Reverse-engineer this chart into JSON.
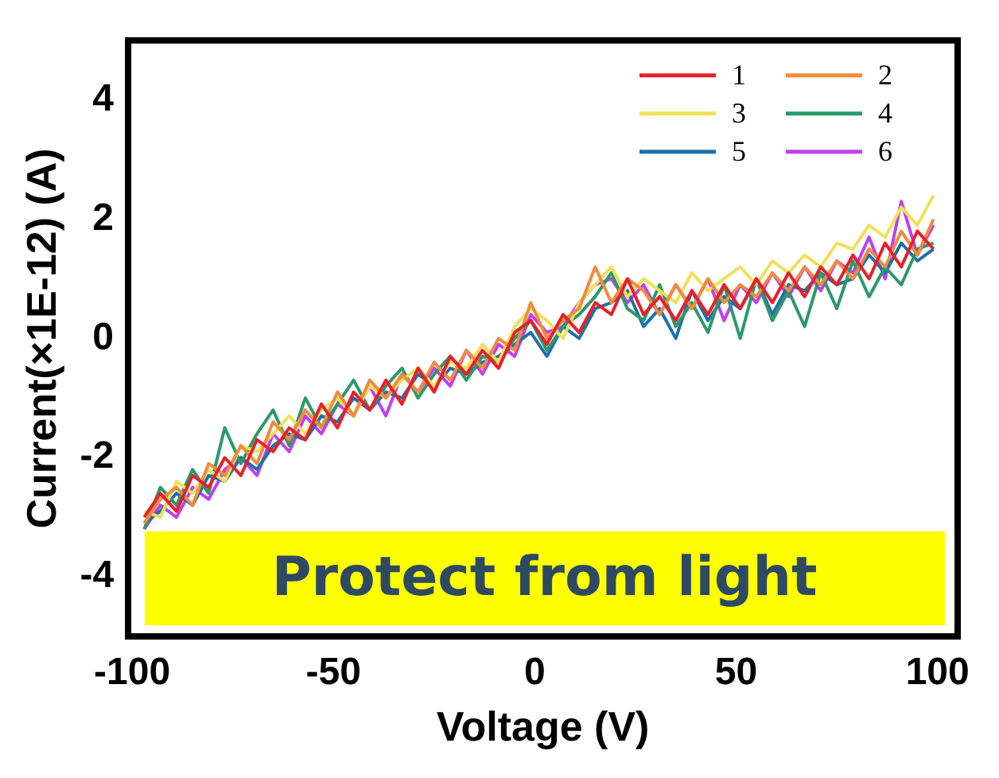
{
  "chart_data": {
    "type": "line",
    "xlabel": "Voltage (V)",
    "ylabel": "Current(×1E-12) (A)",
    "x": [
      -97,
      -93,
      -89,
      -85,
      -81,
      -77,
      -73,
      -69,
      -65,
      -61,
      -57,
      -53,
      -49,
      -45,
      -41,
      -37,
      -33,
      -29,
      -25,
      -21,
      -17,
      -13,
      -9,
      -5,
      -1,
      3,
      7,
      11,
      15,
      19,
      23,
      27,
      31,
      35,
      39,
      43,
      47,
      51,
      55,
      59,
      63,
      67,
      71,
      75,
      79,
      83,
      87,
      91,
      95,
      99
    ],
    "xlim": [
      -101,
      105
    ],
    "xticks": [
      -100,
      -50,
      0,
      50,
      100
    ],
    "ylim": [
      -5,
      5
    ],
    "yticks": [
      -4,
      -2,
      0,
      2,
      4
    ],
    "legend": "top right",
    "annotations": [
      "Protect from light"
    ],
    "series": [
      {
        "name": "1",
        "color": "#e8202a",
        "values": [
          -3.0,
          -2.6,
          -2.9,
          -2.3,
          -2.5,
          -2.0,
          -2.3,
          -1.7,
          -1.9,
          -1.5,
          -1.7,
          -1.1,
          -1.5,
          -0.9,
          -1.2,
          -0.7,
          -1.1,
          -0.5,
          -0.9,
          -0.3,
          -0.6,
          -0.2,
          -0.5,
          0.1,
          0.3,
          -0.1,
          0.4,
          0.1,
          0.6,
          0.4,
          1.0,
          0.4,
          0.7,
          0.3,
          0.8,
          0.4,
          0.9,
          0.5,
          1.0,
          0.6,
          1.1,
          0.7,
          1.2,
          0.9,
          1.4,
          1.0,
          1.6,
          1.2,
          1.8,
          1.5
        ]
      },
      {
        "name": "2",
        "color": "#f08c3c",
        "values": [
          -3.1,
          -2.7,
          -2.5,
          -2.8,
          -2.1,
          -2.3,
          -1.8,
          -2.1,
          -1.4,
          -1.7,
          -1.2,
          -1.5,
          -0.9,
          -1.3,
          -0.7,
          -1.0,
          -0.6,
          -0.9,
          -0.4,
          -0.7,
          -0.2,
          -0.5,
          0.0,
          -0.2,
          0.6,
          0.0,
          0.3,
          0.5,
          1.2,
          0.6,
          1.0,
          0.8,
          0.4,
          0.9,
          0.5,
          1.0,
          0.6,
          0.9,
          0.7,
          1.1,
          0.8,
          1.2,
          0.9,
          1.3,
          1.0,
          1.5,
          1.2,
          1.8,
          1.4,
          2.0
        ]
      },
      {
        "name": "3",
        "color": "#f0e05a",
        "values": [
          -2.9,
          -3.0,
          -2.4,
          -2.6,
          -2.2,
          -2.4,
          -1.8,
          -1.9,
          -1.6,
          -1.3,
          -1.6,
          -1.2,
          -1.0,
          -1.3,
          -0.8,
          -1.0,
          -0.7,
          -0.5,
          -0.8,
          -0.4,
          -0.5,
          -0.1,
          -0.4,
          0.2,
          0.5,
          0.3,
          0.0,
          0.6,
          0.9,
          1.2,
          0.7,
          1.0,
          0.8,
          0.6,
          1.1,
          0.8,
          1.0,
          1.2,
          0.9,
          1.3,
          1.1,
          1.4,
          1.2,
          1.6,
          1.5,
          1.9,
          1.7,
          2.2,
          1.9,
          2.4
        ]
      },
      {
        "name": "4",
        "color": "#2a9a6a",
        "values": [
          -3.2,
          -2.5,
          -2.8,
          -2.2,
          -2.6,
          -1.5,
          -2.1,
          -1.6,
          -1.2,
          -1.8,
          -1.0,
          -1.5,
          -1.1,
          -0.7,
          -1.2,
          -0.8,
          -0.5,
          -1.0,
          -0.6,
          -0.3,
          -0.7,
          -0.3,
          -0.4,
          0.0,
          0.3,
          -0.2,
          0.2,
          0.4,
          0.7,
          1.1,
          0.5,
          0.3,
          0.9,
          0.2,
          0.6,
          0.1,
          0.9,
          0.0,
          1.0,
          0.3,
          0.8,
          0.2,
          1.1,
          0.5,
          1.3,
          0.7,
          1.2,
          0.9,
          1.5,
          1.6
        ]
      },
      {
        "name": "5",
        "color": "#1f6fae",
        "values": [
          -3.1,
          -2.9,
          -2.6,
          -2.8,
          -2.3,
          -2.4,
          -2.0,
          -2.2,
          -1.8,
          -1.6,
          -1.7,
          -1.3,
          -1.4,
          -1.0,
          -1.2,
          -0.9,
          -1.0,
          -0.6,
          -0.8,
          -0.5,
          -0.6,
          -0.4,
          -0.3,
          -0.1,
          0.1,
          -0.3,
          0.2,
          0.0,
          0.5,
          0.6,
          0.8,
          0.2,
          0.5,
          0.0,
          0.8,
          0.3,
          0.7,
          0.5,
          1.0,
          0.4,
          0.9,
          0.8,
          1.1,
          0.9,
          1.0,
          1.4,
          1.1,
          1.6,
          1.3,
          1.5
        ]
      },
      {
        "name": "6",
        "color": "#c040f0",
        "values": [
          -3.2,
          -2.8,
          -3.0,
          -2.5,
          -2.7,
          -2.2,
          -2.0,
          -2.3,
          -1.6,
          -1.9,
          -1.3,
          -1.6,
          -1.1,
          -1.3,
          -0.8,
          -1.3,
          -0.6,
          -0.9,
          -0.5,
          -0.8,
          -0.2,
          -0.6,
          -0.1,
          -0.3,
          0.4,
          0.1,
          0.2,
          0.6,
          0.9,
          1.0,
          0.6,
          0.9,
          0.4,
          0.9,
          0.5,
          1.0,
          0.3,
          0.9,
          0.6,
          1.1,
          0.7,
          1.2,
          0.8,
          1.3,
          1.1,
          1.7,
          1.0,
          2.3,
          1.4,
          1.9
        ]
      }
    ]
  }
}
